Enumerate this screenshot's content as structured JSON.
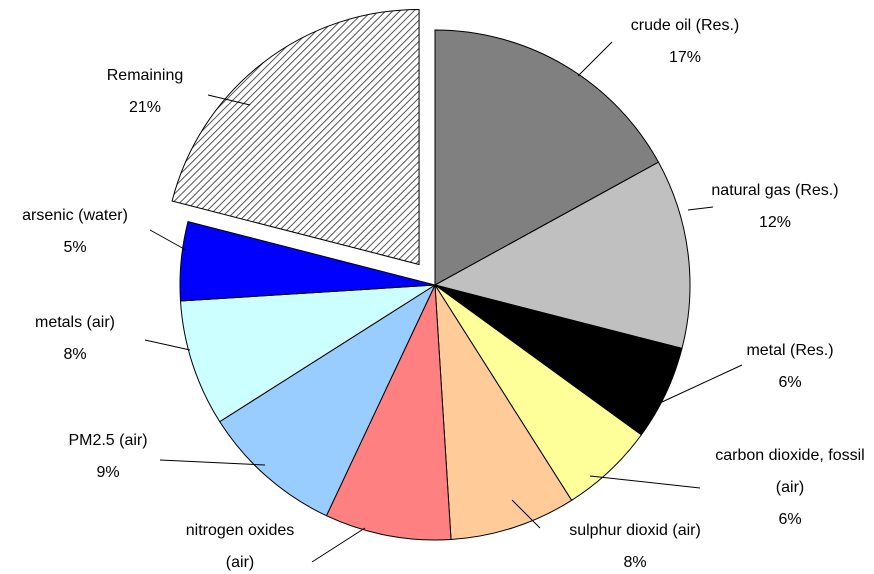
{
  "chart_data": {
    "type": "pie",
    "categories": [
      "crude oil (Res.)",
      "natural gas (Res.)",
      "metal (Res.)",
      "carbon dioxide, fossil (air)",
      "sulphur dioxid (air)",
      "nitrogen oxides (air)",
      "PM2.5 (air)",
      "metals (air)",
      "arsenic (water)",
      "Remaining"
    ],
    "values": [
      17,
      12,
      6,
      6,
      8,
      8,
      9,
      8,
      5,
      21
    ],
    "value_labels": [
      "17%",
      "12%",
      "6%",
      "6%",
      "8%",
      null,
      "9%",
      "8%",
      "5%",
      "21%"
    ],
    "colors": [
      "#808080",
      "#c0c0c0",
      "#000000",
      "#ffff99",
      "#ffcc99",
      "#ff8080",
      "#99ccff",
      "#ccffff",
      "#0000ff",
      "hatch"
    ],
    "exploded": [
      "Remaining"
    ]
  }
}
